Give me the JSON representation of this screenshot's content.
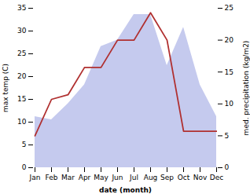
{
  "chart_data": {
    "type": "line",
    "xlabel": "date (month)",
    "ylabel": "max temp (C)",
    "y2label": "med. precipitation (kg/m2)",
    "categories": [
      "Jan",
      "Feb",
      "Mar",
      "Apr",
      "May",
      "Jun",
      "Jul",
      "Aug",
      "Sep",
      "Oct",
      "Nov",
      "Dec"
    ],
    "series": [
      {
        "type": "area",
        "axis": "y2",
        "color": "#c5caee",
        "values": [
          8,
          7.5,
          10,
          13,
          19,
          20,
          24,
          24,
          16,
          22,
          13,
          8
        ]
      },
      {
        "type": "line",
        "color": "#b03030",
        "values": [
          7,
          15,
          16,
          22,
          22,
          28,
          28,
          34,
          28,
          8,
          8,
          8
        ]
      }
    ],
    "ylim": [
      0,
      35
    ],
    "yticks": [
      0,
      5,
      10,
      15,
      20,
      25,
      30,
      35
    ],
    "y2lim": [
      0,
      25
    ],
    "y2ticks": [
      0,
      5,
      10,
      15,
      20,
      25
    ],
    "grid": false
  }
}
